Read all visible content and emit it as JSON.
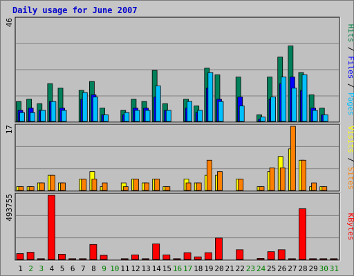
{
  "chart_data": {
    "title": "Daily usage for June 2007",
    "x": [
      "1",
      "2",
      "3",
      "4",
      "5",
      "6",
      "7",
      "8",
      "9",
      "10",
      "11",
      "12",
      "13",
      "14",
      "15",
      "16",
      "17",
      "18",
      "19",
      "20",
      "21",
      "22",
      "23",
      "24",
      "25",
      "26",
      "27",
      "28",
      "29",
      "30",
      "31"
    ],
    "weekend_days": [
      2,
      3,
      9,
      10,
      16,
      17,
      23,
      24,
      30,
      31
    ],
    "panels": [
      {
        "type": "bar",
        "ymax_label": "46",
        "ymax": 46,
        "legend": [
          {
            "text": "Hits",
            "color": "#008040"
          },
          {
            "text": " / ",
            "color": "#000000"
          },
          {
            "text": "Files",
            "color": "#0000ff"
          },
          {
            "text": " / ",
            "color": "#000000"
          },
          {
            "text": "Pages",
            "color": "#00c0ff"
          }
        ],
        "series": [
          {
            "name": "Hits",
            "color": "#00805a",
            "values": [
              9,
              10,
              8,
              17,
              15,
              0,
              14,
              18,
              6,
              0,
              5,
              10,
              9,
              23,
              8,
              0,
              10,
              7,
              24,
              21,
              0,
              20,
              0,
              3,
              20,
              29,
              34,
              22,
              12,
              6,
              0
            ]
          },
          {
            "name": "Files",
            "color": "#0000ff",
            "values": [
              5,
              6,
              5,
              9,
              6,
              0,
              10,
              12,
              3,
              0,
              3,
              6,
              6,
              11,
              5,
              0,
              6,
              4,
              15,
              10,
              0,
              11,
              0,
              1,
              10,
              17,
              20,
              14,
              6,
              3,
              0
            ]
          },
          {
            "name": "Pages",
            "color": "#00c0ff",
            "values": [
              4,
              4,
              5,
              9,
              5,
              0,
              13,
              11,
              3,
              0,
              4,
              5,
              5,
              16,
              5,
              0,
              9,
              5,
              22,
              9,
              0,
              7,
              0,
              2,
              11,
              20,
              15,
              21,
              5,
              3,
              0
            ]
          }
        ]
      },
      {
        "type": "bar",
        "ymax_label": "17",
        "ymax": 17,
        "legend": [
          {
            "text": "Visits",
            "color": "#ffff00"
          },
          {
            "text": " / ",
            "color": "#000000"
          },
          {
            "text": "Sites",
            "color": "#ff8000"
          }
        ],
        "series": [
          {
            "name": "Visits",
            "color": "#ffff00",
            "values": [
              1,
              1,
              2,
              4,
              2,
              0,
              3,
              5,
              1,
              0,
              2,
              3,
              2,
              3,
              1,
              0,
              3,
              2,
              4,
              4,
              0,
              3,
              0,
              1,
              5,
              9,
              11,
              8,
              1,
              1,
              0
            ]
          },
          {
            "name": "Sites",
            "color": "#ff8000",
            "values": [
              1,
              1,
              2,
              4,
              2,
              0,
              3,
              3,
              2,
              0,
              1,
              3,
              2,
              3,
              1,
              0,
              2,
              2,
              8,
              5,
              0,
              3,
              0,
              1,
              6,
              6,
              17,
              8,
              2,
              1,
              0
            ]
          }
        ]
      },
      {
        "type": "bar",
        "ymax_label": "493755",
        "ymax": 493755,
        "legend": [
          {
            "text": "KBytes",
            "color": "#ff0000"
          }
        ],
        "series": [
          {
            "name": "KBytes",
            "color": "#ff0000",
            "values": [
              45000,
              55000,
              6000,
              493755,
              40000,
              6000,
              6000,
              115000,
              32000,
              0,
              6000,
              35000,
              6000,
              120000,
              35000,
              6000,
              52000,
              20000,
              52000,
              165000,
              0,
              75000,
              0,
              8000,
              60000,
              75000,
              6000,
              390000,
              6000,
              6000,
              6000
            ]
          }
        ]
      }
    ]
  }
}
